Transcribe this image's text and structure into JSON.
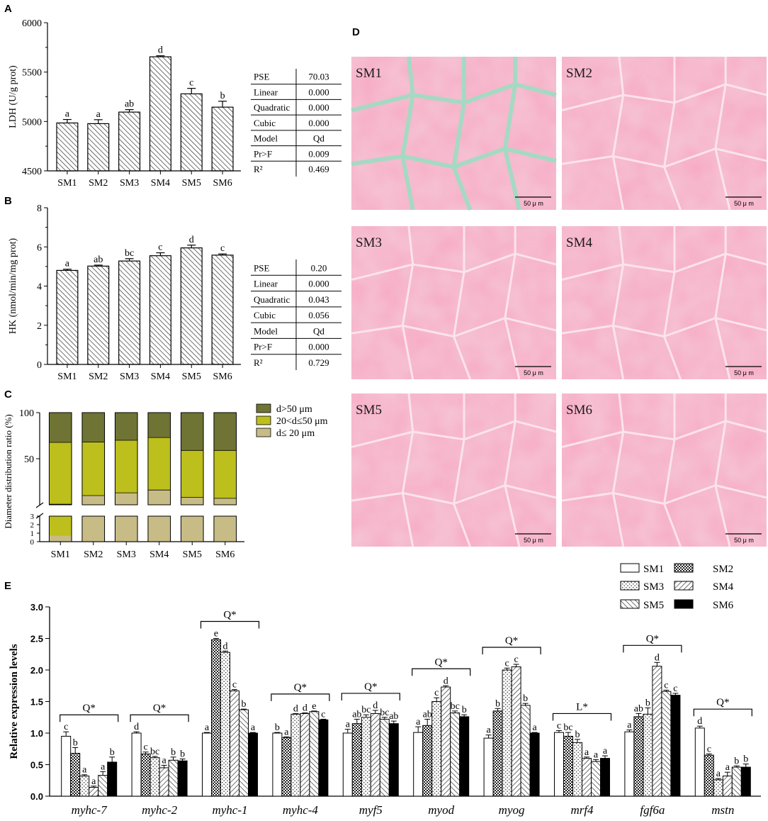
{
  "panels": {
    "A": {
      "letter": "A",
      "ylabel": "LDH (U/g prot)",
      "categories": [
        "SM1",
        "SM2",
        "SM3",
        "SM4",
        "SM5",
        "SM6"
      ],
      "values": [
        4985,
        4978,
        5095,
        5655,
        5280,
        5145
      ],
      "errors": [
        35,
        40,
        25,
        10,
        55,
        60
      ],
      "letters": [
        "a",
        "a",
        "ab",
        "d",
        "c",
        "b"
      ],
      "ylim": [
        4500,
        6000
      ],
      "yticks": [
        "4500",
        "5000",
        "5500",
        "6000"
      ],
      "stats": [
        [
          "PSE",
          "70.03"
        ],
        [
          "Linear",
          "0.000"
        ],
        [
          "Quadratic",
          "0.000"
        ],
        [
          "Cubic",
          "0.000"
        ],
        [
          "Model",
          "Qd"
        ],
        [
          "Pr>F",
          "0.009"
        ],
        [
          "R²",
          "0.469"
        ]
      ]
    },
    "B": {
      "letter": "B",
      "ylabel": "HK (nmol/min/mg prot)",
      "categories": [
        "SM1",
        "SM2",
        "SM3",
        "SM4",
        "SM5",
        "SM6"
      ],
      "values": [
        4.8,
        5.02,
        5.28,
        5.55,
        5.95,
        5.58
      ],
      "errors": [
        0.06,
        0.05,
        0.12,
        0.15,
        0.14,
        0.06
      ],
      "letters": [
        "a",
        "ab",
        "bc",
        "c",
        "d",
        "c"
      ],
      "ylim": [
        0,
        8
      ],
      "yticks": [
        "0",
        "2",
        "4",
        "6",
        "8"
      ],
      "stats": [
        [
          "PSE",
          "0.20"
        ],
        [
          "Linear",
          "0.000"
        ],
        [
          "Quadratic",
          "0.043"
        ],
        [
          "Cubic",
          "0.056"
        ],
        [
          "Model",
          "Qd"
        ],
        [
          "Pr>F",
          "0.000"
        ],
        [
          "R²",
          "0.729"
        ]
      ]
    },
    "C": {
      "letter": "C",
      "ylabel": "Diameter distribution ratio (%)",
      "categories": [
        "SM1",
        "SM2",
        "SM3",
        "SM4",
        "SM5",
        "SM6"
      ],
      "yticks_top": [
        "100",
        "50"
      ],
      "yticks_bottom": [
        "3",
        "2",
        "1",
        "0"
      ],
      "legend": [
        "d>50 μm",
        "20<d≤50 μm",
        "d≤ 20 μm"
      ],
      "colors": [
        "#6f7434",
        "#bdbf1c",
        "#c7bc86"
      ],
      "small": [
        0.7,
        10,
        13,
        16,
        8,
        7
      ],
      "mid": [
        67,
        58,
        57,
        57,
        51,
        52
      ],
      "large": [
        32.3,
        32,
        30,
        27,
        41,
        41
      ]
    },
    "D": {
      "letter": "D",
      "images": [
        "SM1",
        "SM2",
        "SM3",
        "SM4",
        "SM5",
        "SM6"
      ],
      "scale": "50 μ m"
    },
    "E": {
      "letter": "E",
      "ylabel": "Relative expression levels",
      "ylim": [
        0,
        3
      ],
      "yticks": [
        "0.0",
        "0.5",
        "1.0",
        "1.5",
        "2.0",
        "2.5",
        "3.0"
      ],
      "legend": [
        "SM1",
        "SM2",
        "SM3",
        "SM4",
        "SM5",
        "SM6"
      ]
    }
  },
  "chart_data": [
    {
      "type": "bar",
      "ylabel": "LDH (U/g prot)",
      "categories": [
        "SM1",
        "SM2",
        "SM3",
        "SM4",
        "SM5",
        "SM6"
      ],
      "values": [
        4985,
        4978,
        5095,
        5655,
        5280,
        5145
      ],
      "ylim": [
        4500,
        6000
      ]
    },
    {
      "type": "bar",
      "ylabel": "HK (nmol/min/mg prot)",
      "categories": [
        "SM1",
        "SM2",
        "SM3",
        "SM4",
        "SM5",
        "SM6"
      ],
      "values": [
        4.8,
        5.02,
        5.28,
        5.55,
        5.95,
        5.58
      ],
      "ylim": [
        0,
        8
      ]
    },
    {
      "type": "bar",
      "ylabel": "Diameter distribution ratio (%)",
      "categories": [
        "SM1",
        "SM2",
        "SM3",
        "SM4",
        "SM5",
        "SM6"
      ],
      "series": [
        {
          "name": "d≤ 20 μm",
          "values": [
            0.7,
            10,
            13,
            16,
            8,
            7
          ]
        },
        {
          "name": "20<d≤50 μm",
          "values": [
            67,
            58,
            57,
            57,
            51,
            52
          ]
        },
        {
          "name": "d>50 μm",
          "values": [
            32.3,
            32,
            30,
            27,
            41,
            41
          ]
        }
      ]
    },
    {
      "type": "bar",
      "ylabel": "Relative expression levels",
      "ylim": [
        0,
        3
      ],
      "categories": [
        "myhc-7",
        "myhc-2",
        "myhc-1",
        "myhc-4",
        "myf5",
        "myod",
        "myog",
        "mrf4",
        "fgf6a",
        "mstn"
      ],
      "groups": [
        {
          "gene": "myhc-7",
          "sig": "Q*",
          "values": [
            0.95,
            0.68,
            0.32,
            0.14,
            0.33,
            0.54
          ],
          "errors": [
            0.07,
            0.09,
            0.02,
            0.02,
            0.06,
            0.08
          ],
          "letters": [
            "c",
            "b",
            "a",
            "a",
            "a",
            "b"
          ]
        },
        {
          "gene": "myhc-2",
          "sig": "Q*",
          "values": [
            1.0,
            0.67,
            0.61,
            0.45,
            0.57,
            0.56
          ],
          "errors": [
            0.02,
            0.03,
            0.02,
            0.04,
            0.05,
            0.03
          ],
          "letters": [
            "d",
            "c",
            "bc",
            "a",
            "b",
            "b"
          ]
        },
        {
          "gene": "myhc-1",
          "sig": "Q*",
          "values": [
            1.0,
            2.48,
            2.28,
            1.67,
            1.37,
            1.0
          ],
          "errors": [
            0.01,
            0.02,
            0.02,
            0.02,
            0.01,
            0.01
          ],
          "letters": [
            "a",
            "e",
            "d",
            "c",
            "b",
            "a"
          ]
        },
        {
          "gene": "myhc-4",
          "sig": "Q*",
          "values": [
            1.0,
            0.93,
            1.3,
            1.31,
            1.34,
            1.21
          ],
          "errors": [
            0.01,
            0.01,
            0.01,
            0.01,
            0.01,
            0.01
          ],
          "letters": [
            "b",
            "a",
            "d",
            "d",
            "e",
            "c"
          ]
        },
        {
          "gene": "myf5",
          "sig": "Q*",
          "values": [
            1.0,
            1.15,
            1.25,
            1.31,
            1.22,
            1.15
          ],
          "errors": [
            0.06,
            0.07,
            0.04,
            0.05,
            0.03,
            0.04
          ],
          "letters": [
            "a",
            "ab",
            "bc",
            "d",
            "bc",
            "ab"
          ]
        },
        {
          "gene": "myod",
          "sig": "Q*",
          "values": [
            1.01,
            1.12,
            1.5,
            1.73,
            1.32,
            1.26
          ],
          "errors": [
            0.09,
            0.1,
            0.06,
            0.02,
            0.03,
            0.03
          ],
          "letters": [
            "a",
            "ab",
            "c",
            "d",
            "bc",
            "b"
          ]
        },
        {
          "gene": "myog",
          "sig": "Q*",
          "values": [
            0.92,
            1.35,
            2.0,
            2.05,
            1.44,
            1.0
          ],
          "errors": [
            0.05,
            0.04,
            0.03,
            0.04,
            0.03,
            0.01
          ],
          "letters": [
            "a",
            "b",
            "c",
            "c",
            "b",
            "a"
          ]
        },
        {
          "gene": "mrf4",
          "sig": "L*",
          "values": [
            1.01,
            0.95,
            0.85,
            0.6,
            0.55,
            0.6
          ],
          "errors": [
            0.03,
            0.06,
            0.05,
            0.02,
            0.03,
            0.04
          ],
          "letters": [
            "c",
            "bc",
            "b",
            "a",
            "a",
            "a"
          ]
        },
        {
          "gene": "fgf6a",
          "sig": "Q*",
          "values": [
            1.02,
            1.26,
            1.3,
            2.06,
            1.66,
            1.6
          ],
          "errors": [
            0.03,
            0.05,
            0.1,
            0.06,
            0.02,
            0.03
          ],
          "letters": [
            "a",
            "ab",
            "b",
            "d",
            "c",
            "c"
          ]
        },
        {
          "gene": "mstn",
          "sig": "Q*",
          "values": [
            1.08,
            0.65,
            0.26,
            0.32,
            0.46,
            0.46
          ],
          "errors": [
            0.03,
            0.02,
            0.02,
            0.06,
            0.02,
            0.05
          ],
          "letters": [
            "d",
            "c",
            "a",
            "a",
            "b",
            "b"
          ]
        }
      ]
    }
  ]
}
